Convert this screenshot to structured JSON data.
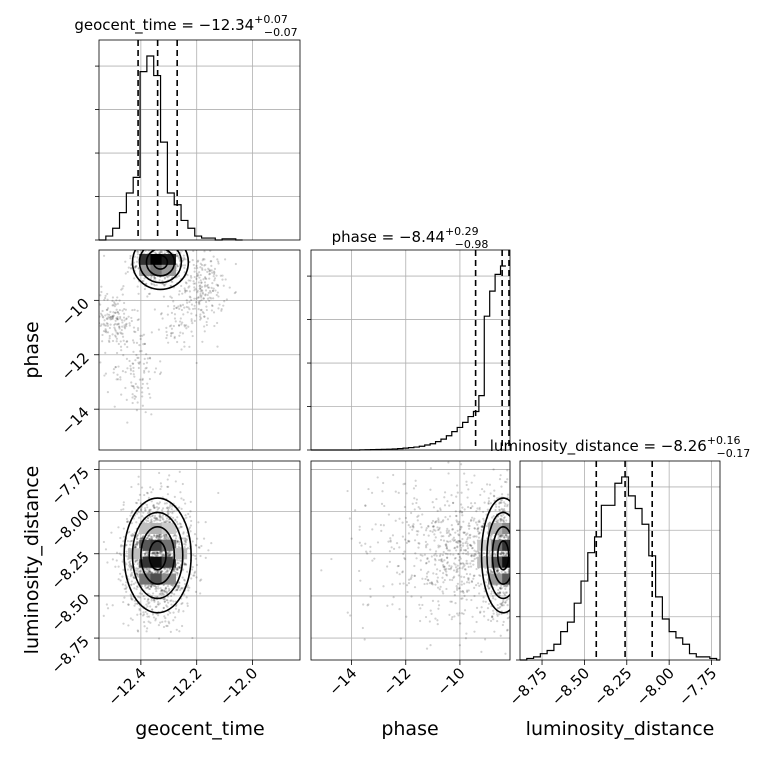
{
  "chart_data": {
    "type": "corner",
    "parameters": [
      "geocent_time",
      "phase",
      "luminosity_distance"
    ],
    "titles": [
      {
        "param": "geocent_time",
        "prefix": "geocent_time = −12.34",
        "upper": "+0.07",
        "lower": "−0.07",
        "median": -12.34,
        "plus": 0.07,
        "minus": 0.07
      },
      {
        "param": "phase",
        "prefix": "phase = −8.44",
        "upper": "+0.29",
        "lower": "−0.98",
        "median": -8.44,
        "plus": 0.29,
        "minus": 0.98
      },
      {
        "param": "luminosity_distance",
        "prefix": "luminosity_distance = −8.26",
        "upper": "+0.16",
        "lower": "−0.17",
        "median": -8.26,
        "plus": 0.16,
        "minus": 0.17
      }
    ],
    "axis_labels": {
      "x": [
        "geocent_time",
        "phase",
        "luminosity_distance"
      ],
      "y": [
        "phase",
        "luminosity_distance"
      ]
    },
    "ranges": {
      "geocent_time": [
        -12.55,
        -11.83
      ],
      "phase": [
        -15.5,
        -8.15
      ],
      "luminosity_distance": [
        -8.88,
        -7.7
      ]
    },
    "ticks": {
      "geocent_time": [
        {
          "v": -12.4,
          "label": "−12.4"
        },
        {
          "v": -12.2,
          "label": "−12.2"
        },
        {
          "v": -12.0,
          "label": "−12.0"
        }
      ],
      "phase": [
        {
          "v": -14,
          "label": "−14"
        },
        {
          "v": -12,
          "label": "−12"
        },
        {
          "v": -10,
          "label": "−10"
        }
      ],
      "luminosity_distance": [
        {
          "v": -8.75,
          "label": "−8.75"
        },
        {
          "v": -8.5,
          "label": "−8.50"
        },
        {
          "v": -8.25,
          "label": "−8.25"
        },
        {
          "v": -8.0,
          "label": "−8.00"
        },
        {
          "v": -7.75,
          "label": "−7.75"
        }
      ]
    },
    "histograms": {
      "geocent_time": {
        "edges_start": -12.55,
        "bin_width": 0.0245,
        "counts": [
          0,
          1,
          3,
          7,
          12,
          16,
          43,
          47,
          42,
          25,
          12,
          9,
          5,
          3,
          1,
          0.5,
          0.5,
          0,
          0.3,
          0.3,
          0
        ]
      },
      "phase": {
        "edges_start": -15.5,
        "bin_width": 0.2,
        "counts": [
          0,
          0,
          0,
          0,
          0,
          0,
          0,
          0,
          0,
          0.2,
          0.3,
          0.5,
          0.6,
          0.8,
          1,
          1.3,
          1.6,
          2.2,
          2.8,
          3.5,
          4.5,
          6,
          7.5,
          10,
          13,
          17,
          22,
          27,
          33,
          40,
          46,
          65,
          160,
          190,
          210,
          220
        ]
      },
      "luminosity_distance": {
        "edges_start": -8.88,
        "bin_width": 0.04,
        "counts": [
          0,
          0.5,
          1,
          2,
          3,
          5,
          9,
          12,
          18,
          25,
          34,
          39,
          49,
          49,
          56,
          58,
          52,
          48,
          43,
          33,
          20,
          13,
          9,
          7,
          5,
          2,
          1,
          1,
          0.5,
          0
        ]
      }
    },
    "quantiles": {
      "geocent_time": [
        -12.41,
        -12.34,
        -12.27
      ],
      "phase": [
        -9.42,
        -8.44,
        -8.15
      ],
      "luminosity_distance": [
        -8.43,
        -8.26,
        -8.1
      ]
    },
    "samples": {
      "geocent_time_vs_phase": {
        "clusters": [
          {
            "cx": -12.33,
            "cy": -8.6,
            "sx": 0.05,
            "sy": 0.5,
            "n": 500
          },
          {
            "cx": -12.18,
            "cy": -9.6,
            "sx": 0.04,
            "sy": 0.7,
            "n": 220
          },
          {
            "cx": -12.5,
            "cy": -10.7,
            "sx": 0.04,
            "sy": 0.5,
            "n": 160
          },
          {
            "cx": -12.42,
            "cy": -12.5,
            "sx": 0.04,
            "sy": 0.9,
            "n": 120
          },
          {
            "cx": -12.27,
            "cy": -10.9,
            "sx": 0.04,
            "sy": 0.5,
            "n": 60
          }
        ]
      },
      "geocent_time_vs_luminosity_distance": {
        "clusters": [
          {
            "cx": -12.34,
            "cy": -8.26,
            "sx": 0.06,
            "sy": 0.17,
            "n": 1600
          }
        ]
      },
      "phase_vs_luminosity_distance": {
        "clusters": [
          {
            "cx": -8.4,
            "cy": -8.26,
            "sx": 0.4,
            "sy": 0.17,
            "n": 700
          },
          {
            "cx": -9.8,
            "cy": -8.26,
            "sx": 1.0,
            "sy": 0.2,
            "n": 600
          },
          {
            "cx": -12.0,
            "cy": -8.2,
            "sx": 1.2,
            "sy": 0.22,
            "n": 150
          }
        ]
      }
    },
    "grid": true,
    "density": {
      "geocent_time_vs_phase": [
        {
          "x": -12.38,
          "y": -8.5,
          "v": 0.2
        },
        {
          "x": -12.34,
          "y": -8.5,
          "v": 0.0
        },
        {
          "x": -12.3,
          "y": -8.5,
          "v": 0.1
        },
        {
          "x": -12.38,
          "y": -8.9,
          "v": 0.6
        },
        {
          "x": -12.34,
          "y": -8.9,
          "v": 0.45
        },
        {
          "x": -12.3,
          "y": -8.9,
          "v": 0.6
        }
      ],
      "geocent_time_vs_luminosity_distance": [
        {
          "x": -12.38,
          "y": -8.1,
          "v": 0.75
        },
        {
          "x": -12.34,
          "y": -8.1,
          "v": 0.7
        },
        {
          "x": -12.3,
          "y": -8.1,
          "v": 0.8
        },
        {
          "x": -12.38,
          "y": -8.2,
          "v": 0.35
        },
        {
          "x": -12.34,
          "y": -8.2,
          "v": 0.25
        },
        {
          "x": -12.3,
          "y": -8.2,
          "v": 0.45
        },
        {
          "x": -12.38,
          "y": -8.3,
          "v": 0.2
        },
        {
          "x": -12.34,
          "y": -8.3,
          "v": 0.05
        },
        {
          "x": -12.3,
          "y": -8.3,
          "v": 0.25
        },
        {
          "x": -12.38,
          "y": -8.4,
          "v": 0.45
        },
        {
          "x": -12.34,
          "y": -8.4,
          "v": 0.3
        },
        {
          "x": -12.3,
          "y": -8.4,
          "v": 0.55
        },
        {
          "x": -12.42,
          "y": -8.25,
          "v": 0.75
        },
        {
          "x": -12.26,
          "y": -8.25,
          "v": 0.75
        }
      ],
      "phase_vs_luminosity_distance": [
        {
          "x": -8.3,
          "y": -8.1,
          "v": 0.55
        },
        {
          "x": -8.3,
          "y": -8.2,
          "v": 0.2
        },
        {
          "x": -8.3,
          "y": -8.3,
          "v": 0.05
        },
        {
          "x": -8.3,
          "y": -8.4,
          "v": 0.35
        },
        {
          "x": -8.7,
          "y": -8.1,
          "v": 0.7
        },
        {
          "x": -8.7,
          "y": -8.2,
          "v": 0.45
        },
        {
          "x": -8.7,
          "y": -8.3,
          "v": 0.35
        },
        {
          "x": -8.7,
          "y": -8.4,
          "v": 0.6
        },
        {
          "x": -9.1,
          "y": -8.2,
          "v": 0.8
        },
        {
          "x": -9.1,
          "y": -8.3,
          "v": 0.75
        }
      ]
    }
  }
}
